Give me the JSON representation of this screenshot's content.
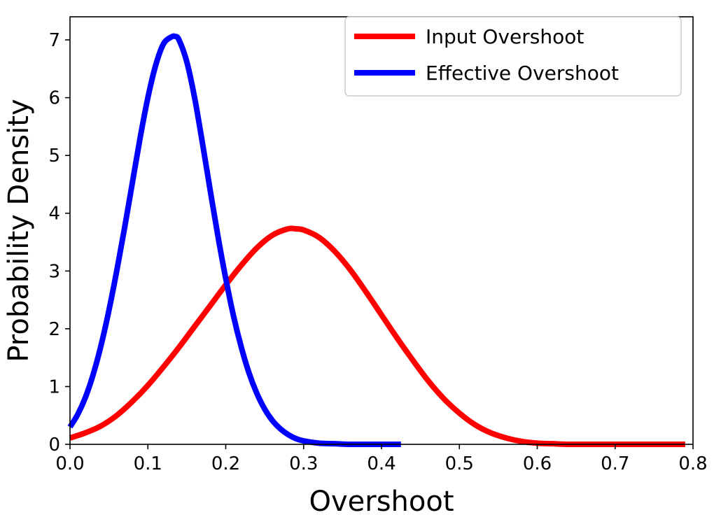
{
  "chart_data": {
    "type": "line",
    "title": "",
    "xlabel": "Overshoot",
    "ylabel": "Probability Density",
    "xlim": [
      0.0,
      0.8
    ],
    "ylim": [
      0.0,
      7.4
    ],
    "x_ticks": [
      0.0,
      0.1,
      0.2,
      0.3,
      0.4,
      0.5,
      0.6,
      0.7,
      0.8
    ],
    "x_tick_labels": [
      "0.0",
      "0.1",
      "0.2",
      "0.3",
      "0.4",
      "0.5",
      "0.6",
      "0.7",
      "0.8"
    ],
    "y_ticks": [
      0,
      1,
      2,
      3,
      4,
      5,
      6,
      7
    ],
    "y_tick_labels": [
      "0",
      "1",
      "2",
      "3",
      "4",
      "5",
      "6",
      "7"
    ],
    "grid": false,
    "legend_position": "top-right",
    "series": [
      {
        "name": "Input Overshoot",
        "color": "#ff0000",
        "x": [
          0.0,
          0.02,
          0.04,
          0.06,
          0.08,
          0.1,
          0.12,
          0.14,
          0.16,
          0.18,
          0.2,
          0.22,
          0.24,
          0.26,
          0.28,
          0.29,
          0.3,
          0.32,
          0.34,
          0.36,
          0.38,
          0.4,
          0.42,
          0.44,
          0.46,
          0.48,
          0.5,
          0.52,
          0.54,
          0.56,
          0.58,
          0.6,
          0.62,
          0.64,
          0.66,
          0.68,
          0.7,
          0.72,
          0.74,
          0.76,
          0.79
        ],
        "y": [
          0.11,
          0.2,
          0.32,
          0.5,
          0.74,
          1.02,
          1.34,
          1.68,
          2.04,
          2.4,
          2.76,
          3.1,
          3.4,
          3.62,
          3.73,
          3.73,
          3.71,
          3.58,
          3.34,
          3.02,
          2.64,
          2.24,
          1.84,
          1.46,
          1.1,
          0.79,
          0.54,
          0.34,
          0.2,
          0.11,
          0.05,
          0.02,
          0.01,
          0.0,
          0.0,
          0.0,
          0.0,
          0.0,
          0.0,
          0.0,
          0.0
        ]
      },
      {
        "name": "Effective Overshoot",
        "color": "#0000ff",
        "x": [
          0.0,
          0.01,
          0.02,
          0.03,
          0.04,
          0.05,
          0.06,
          0.07,
          0.08,
          0.09,
          0.1,
          0.11,
          0.12,
          0.13,
          0.135,
          0.14,
          0.15,
          0.16,
          0.17,
          0.18,
          0.19,
          0.2,
          0.21,
          0.22,
          0.23,
          0.24,
          0.25,
          0.26,
          0.27,
          0.28,
          0.29,
          0.3,
          0.32,
          0.34,
          0.36,
          0.38,
          0.4,
          0.425
        ],
        "y": [
          0.3,
          0.52,
          0.82,
          1.22,
          1.72,
          2.32,
          3.0,
          3.74,
          4.52,
          5.3,
          6.0,
          6.56,
          6.93,
          7.05,
          7.06,
          7.0,
          6.62,
          6.0,
          5.22,
          4.4,
          3.6,
          2.87,
          2.22,
          1.68,
          1.23,
          0.88,
          0.61,
          0.41,
          0.27,
          0.17,
          0.1,
          0.06,
          0.02,
          0.01,
          0.0,
          0.0,
          0.0,
          0.0
        ]
      }
    ]
  }
}
